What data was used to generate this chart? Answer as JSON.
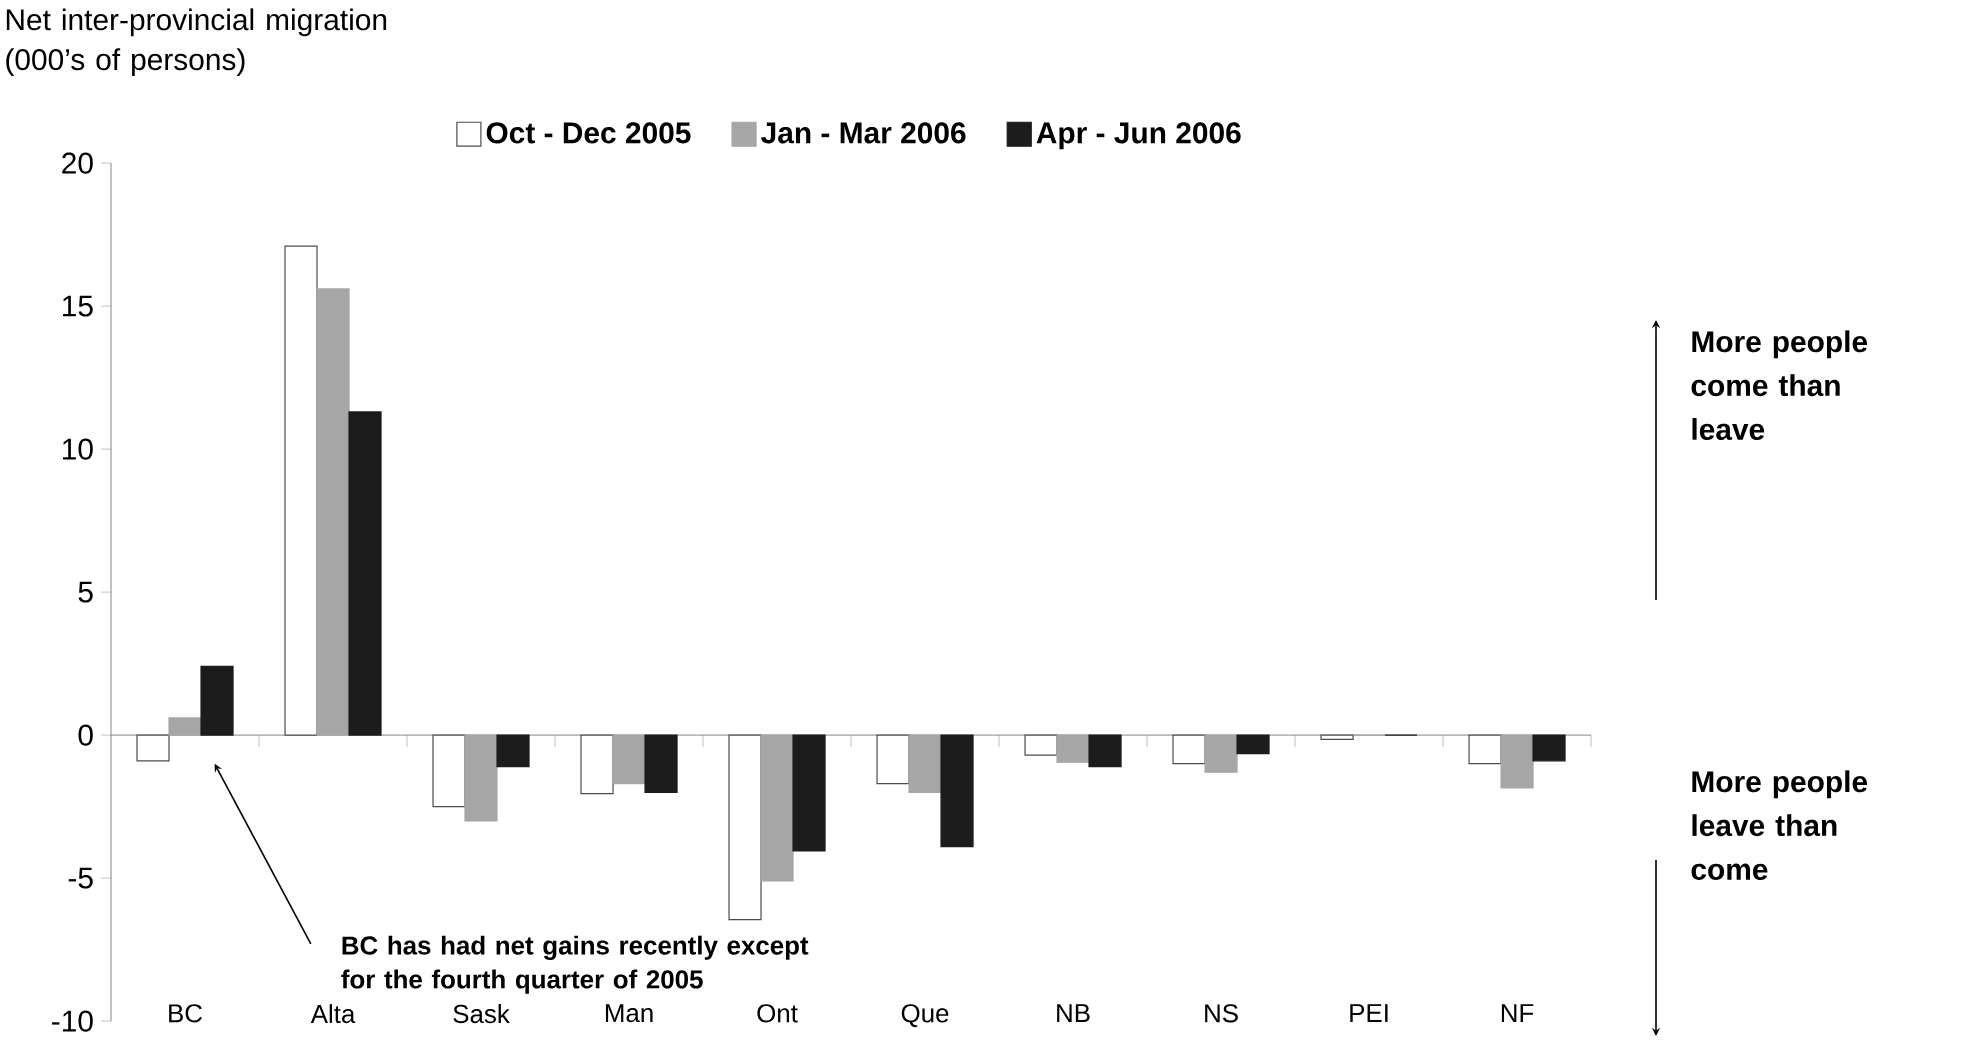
{
  "chart_data": {
    "type": "bar",
    "ylabel": "Net inter-provincial migration (000’s of persons)",
    "categories": [
      "BC",
      "Alta",
      "Sask",
      "Man",
      "Ont",
      "Que",
      "NB",
      "NS",
      "PEI",
      "NF"
    ],
    "series": [
      {
        "name": "Oct - Dec 2005",
        "color": "#ffffff",
        "values": [
          -0.9,
          17.1,
          -2.5,
          -2.05,
          -6.45,
          -1.7,
          -0.7,
          -1.0,
          -0.15,
          -1.0
        ]
      },
      {
        "name": "Jan - Mar 2006",
        "color": "#a6a6a6",
        "values": [
          0.6,
          15.6,
          -3.0,
          -1.7,
          -5.1,
          -2.0,
          -0.95,
          -1.3,
          0,
          -1.85
        ]
      },
      {
        "name": "Apr - Jun 2006",
        "color": "#1c1c1c",
        "values": [
          2.4,
          11.3,
          -1.1,
          -2.0,
          -4.05,
          -3.9,
          -1.1,
          -0.65,
          0,
          -0.9
        ]
      }
    ],
    "ylim": [
      -10,
      20
    ],
    "yticks": [
      -10,
      -5,
      0,
      5,
      10,
      15,
      20
    ],
    "legend": "top",
    "annotations": [
      "**BC has had net gains recently except for the fourth quarter of 2005**",
      "**More people come than leave**",
      "**More people leave than come**"
    ]
  }
}
